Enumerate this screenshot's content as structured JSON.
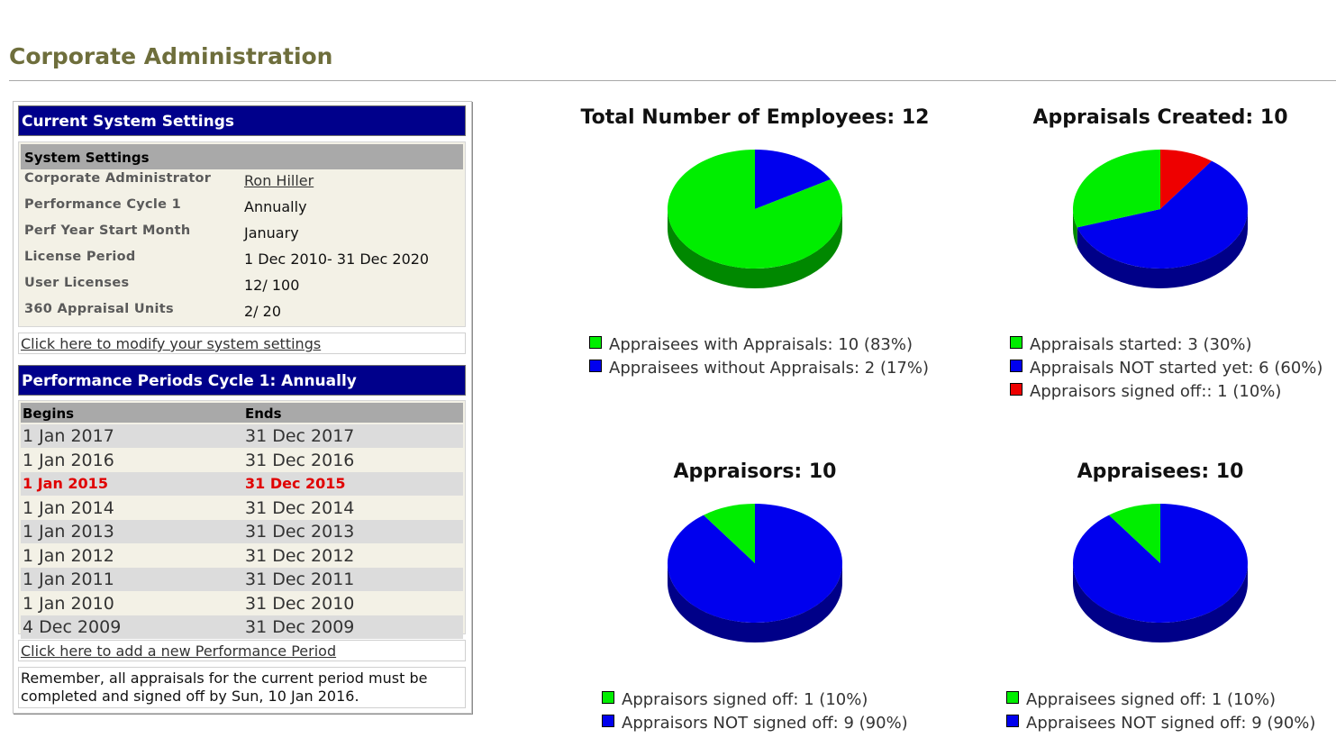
{
  "page": {
    "title": "Corporate Administration"
  },
  "settings": {
    "header": "Current System Settings",
    "subheader": "System Settings",
    "rows": [
      {
        "label": "Corporate Administrator",
        "value": "Ron Hiller"
      },
      {
        "label": "Performance Cycle 1",
        "value": "Annually"
      },
      {
        "label": "Perf Year Start Month",
        "value": "January"
      },
      {
        "label": "License Period",
        "value": "1 Dec 2010- 31 Dec 2020"
      },
      {
        "label": "User Licenses",
        "value": "12/ 100"
      },
      {
        "label": "360 Appraisal Units",
        "value": "2/ 20"
      }
    ],
    "modify_link": "Click here to modify your system settings"
  },
  "periods": {
    "header": "Performance Periods Cycle 1: Annually",
    "col_begins": "Begins",
    "col_ends": "Ends",
    "rows": [
      {
        "begins": "1 Jan 2017",
        "ends": "31 Dec 2017"
      },
      {
        "begins": "1 Jan 2016",
        "ends": "31 Dec 2016"
      },
      {
        "begins": "1 Jan 2015",
        "ends": "31 Dec 2015"
      },
      {
        "begins": "1 Jan 2014",
        "ends": "31 Dec 2014"
      },
      {
        "begins": "1 Jan 2013",
        "ends": "31 Dec 2013"
      },
      {
        "begins": "1 Jan 2012",
        "ends": "31 Dec 2012"
      },
      {
        "begins": "1 Jan 2011",
        "ends": "31 Dec 2011"
      },
      {
        "begins": "1 Jan 2010",
        "ends": "31 Dec 2010"
      },
      {
        "begins": "4 Dec 2009",
        "ends": "31 Dec 2009"
      }
    ],
    "current_index": 2,
    "add_link": "Click here to add a new Performance Period",
    "note": "Remember, all appraisals for the current period must be completed and signed off by Sun, 10 Jan 2016."
  },
  "colors": {
    "green": "#00ee00",
    "blue": "#0000ee",
    "red": "#ee0000",
    "accent": "#00008b",
    "title": "#6e6e3c"
  },
  "chart_data": [
    {
      "type": "pie",
      "title": "Total Number of Employees: 12",
      "series": [
        {
          "name": "Appraisees with Appraisals: 10 (83%)",
          "value": 10,
          "color": "green"
        },
        {
          "name": "Appraisees without Appraisals: 2 (17%)",
          "value": 2,
          "color": "blue"
        }
      ]
    },
    {
      "type": "pie",
      "title": "Appraisals Created: 10",
      "series": [
        {
          "name": "Appraisals started: 3 (30%)",
          "value": 3,
          "color": "green"
        },
        {
          "name": "Appraisals NOT started yet: 6 (60%)",
          "value": 6,
          "color": "blue"
        },
        {
          "name": "Appraisors signed off:: 1 (10%)",
          "value": 1,
          "color": "red"
        }
      ]
    },
    {
      "type": "pie",
      "title": "Appraisors: 10",
      "series": [
        {
          "name": "Appraisors signed off: 1 (10%)",
          "value": 1,
          "color": "green"
        },
        {
          "name": "Appraisors NOT signed off: 9 (90%)",
          "value": 9,
          "color": "blue"
        }
      ]
    },
    {
      "type": "pie",
      "title": "Appraisees: 10",
      "series": [
        {
          "name": "Appraisees signed off: 1 (10%)",
          "value": 1,
          "color": "green"
        },
        {
          "name": "Appraisees NOT signed off: 9 (90%)",
          "value": 9,
          "color": "blue"
        }
      ]
    }
  ]
}
